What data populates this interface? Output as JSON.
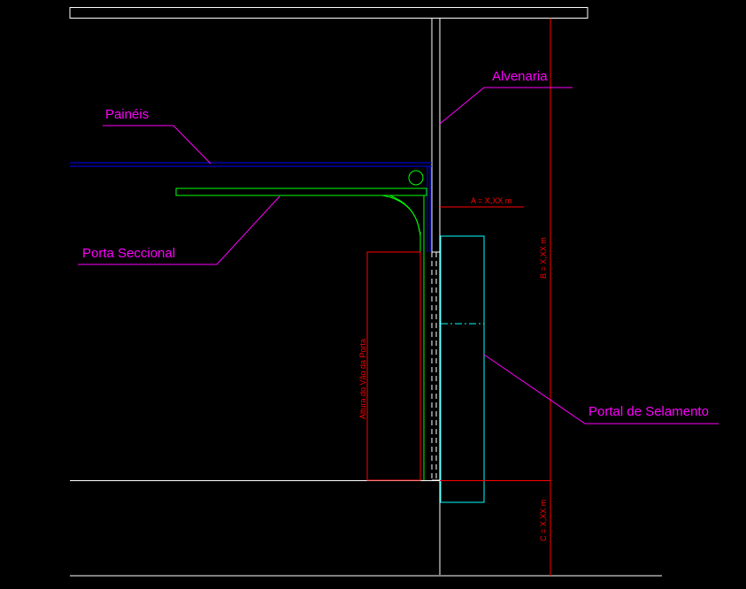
{
  "labels": {
    "alvenaria": "Alvenaria",
    "paineis": "Painéis",
    "porta_seccional": "Porta Seccional",
    "portal_selamento": "Portal de Selamento"
  },
  "dimensions": {
    "a": "A = X,XX m",
    "b": "B = X,XX m",
    "c": "C = X,XX m",
    "altura_vao": "Altura do Vão da Porta"
  },
  "colors": {
    "background": "#000000",
    "wall": "#ffffff",
    "label": "#ff00ff",
    "dimension": "#ff0000",
    "door": "#00ff00",
    "panel": "#0000ff",
    "seal_portal": "#00ffff"
  }
}
